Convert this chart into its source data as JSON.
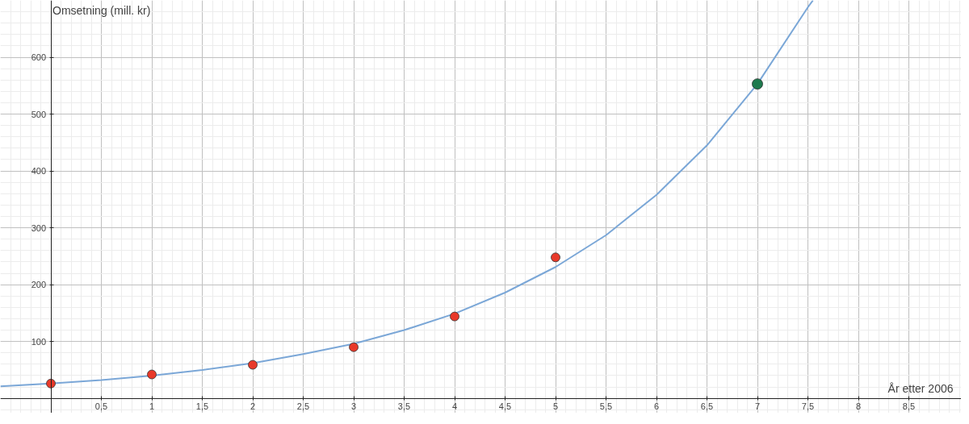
{
  "chart_data": {
    "type": "scatter",
    "xlabel": "År etter 2006",
    "ylabel": "Omsetning (mill. kr)",
    "xlim": [
      -0.5,
      9.02
    ],
    "ylim": [
      -26,
      700
    ],
    "xticks": [
      {
        "value": 0.5,
        "label": "0,5"
      },
      1,
      {
        "value": 1.5,
        "label": "1,5"
      },
      2,
      {
        "value": 2.5,
        "label": "2,5"
      },
      3,
      {
        "value": 3.5,
        "label": "3,5"
      },
      4,
      {
        "value": 4.5,
        "label": "4,5"
      },
      5,
      {
        "value": 5.5,
        "label": "5,5"
      },
      6,
      {
        "value": 6.5,
        "label": "6,5"
      },
      7,
      {
        "value": 7.5,
        "label": "7,5"
      },
      8,
      {
        "value": 8.5,
        "label": "8,5"
      }
    ],
    "yticks": [
      100,
      200,
      300,
      400,
      500,
      600
    ],
    "grid": true,
    "series": [
      {
        "type": "line",
        "color": "#7ba7d7",
        "line_style": "solid",
        "x": [
          -0.5,
          0,
          0.5,
          1,
          1.5,
          2,
          2.5,
          3,
          3.5,
          4,
          4.5,
          5,
          5.5,
          6,
          6.5,
          7,
          7.5,
          7.55
        ],
        "values": [
          21,
          26,
          32,
          40,
          50,
          62,
          78,
          96,
          120,
          149,
          186,
          231,
          287,
          358,
          445,
          553,
          688,
          700
        ]
      },
      {
        "color": "#e8392a",
        "marker": "circle",
        "x": [
          0,
          1,
          2,
          3,
          4,
          5
        ],
        "values": [
          26,
          42,
          59,
          90,
          144,
          248
        ]
      },
      {
        "color": "#1e7a4e",
        "marker": "circle",
        "x": [
          7
        ],
        "values": [
          553
        ]
      }
    ]
  }
}
